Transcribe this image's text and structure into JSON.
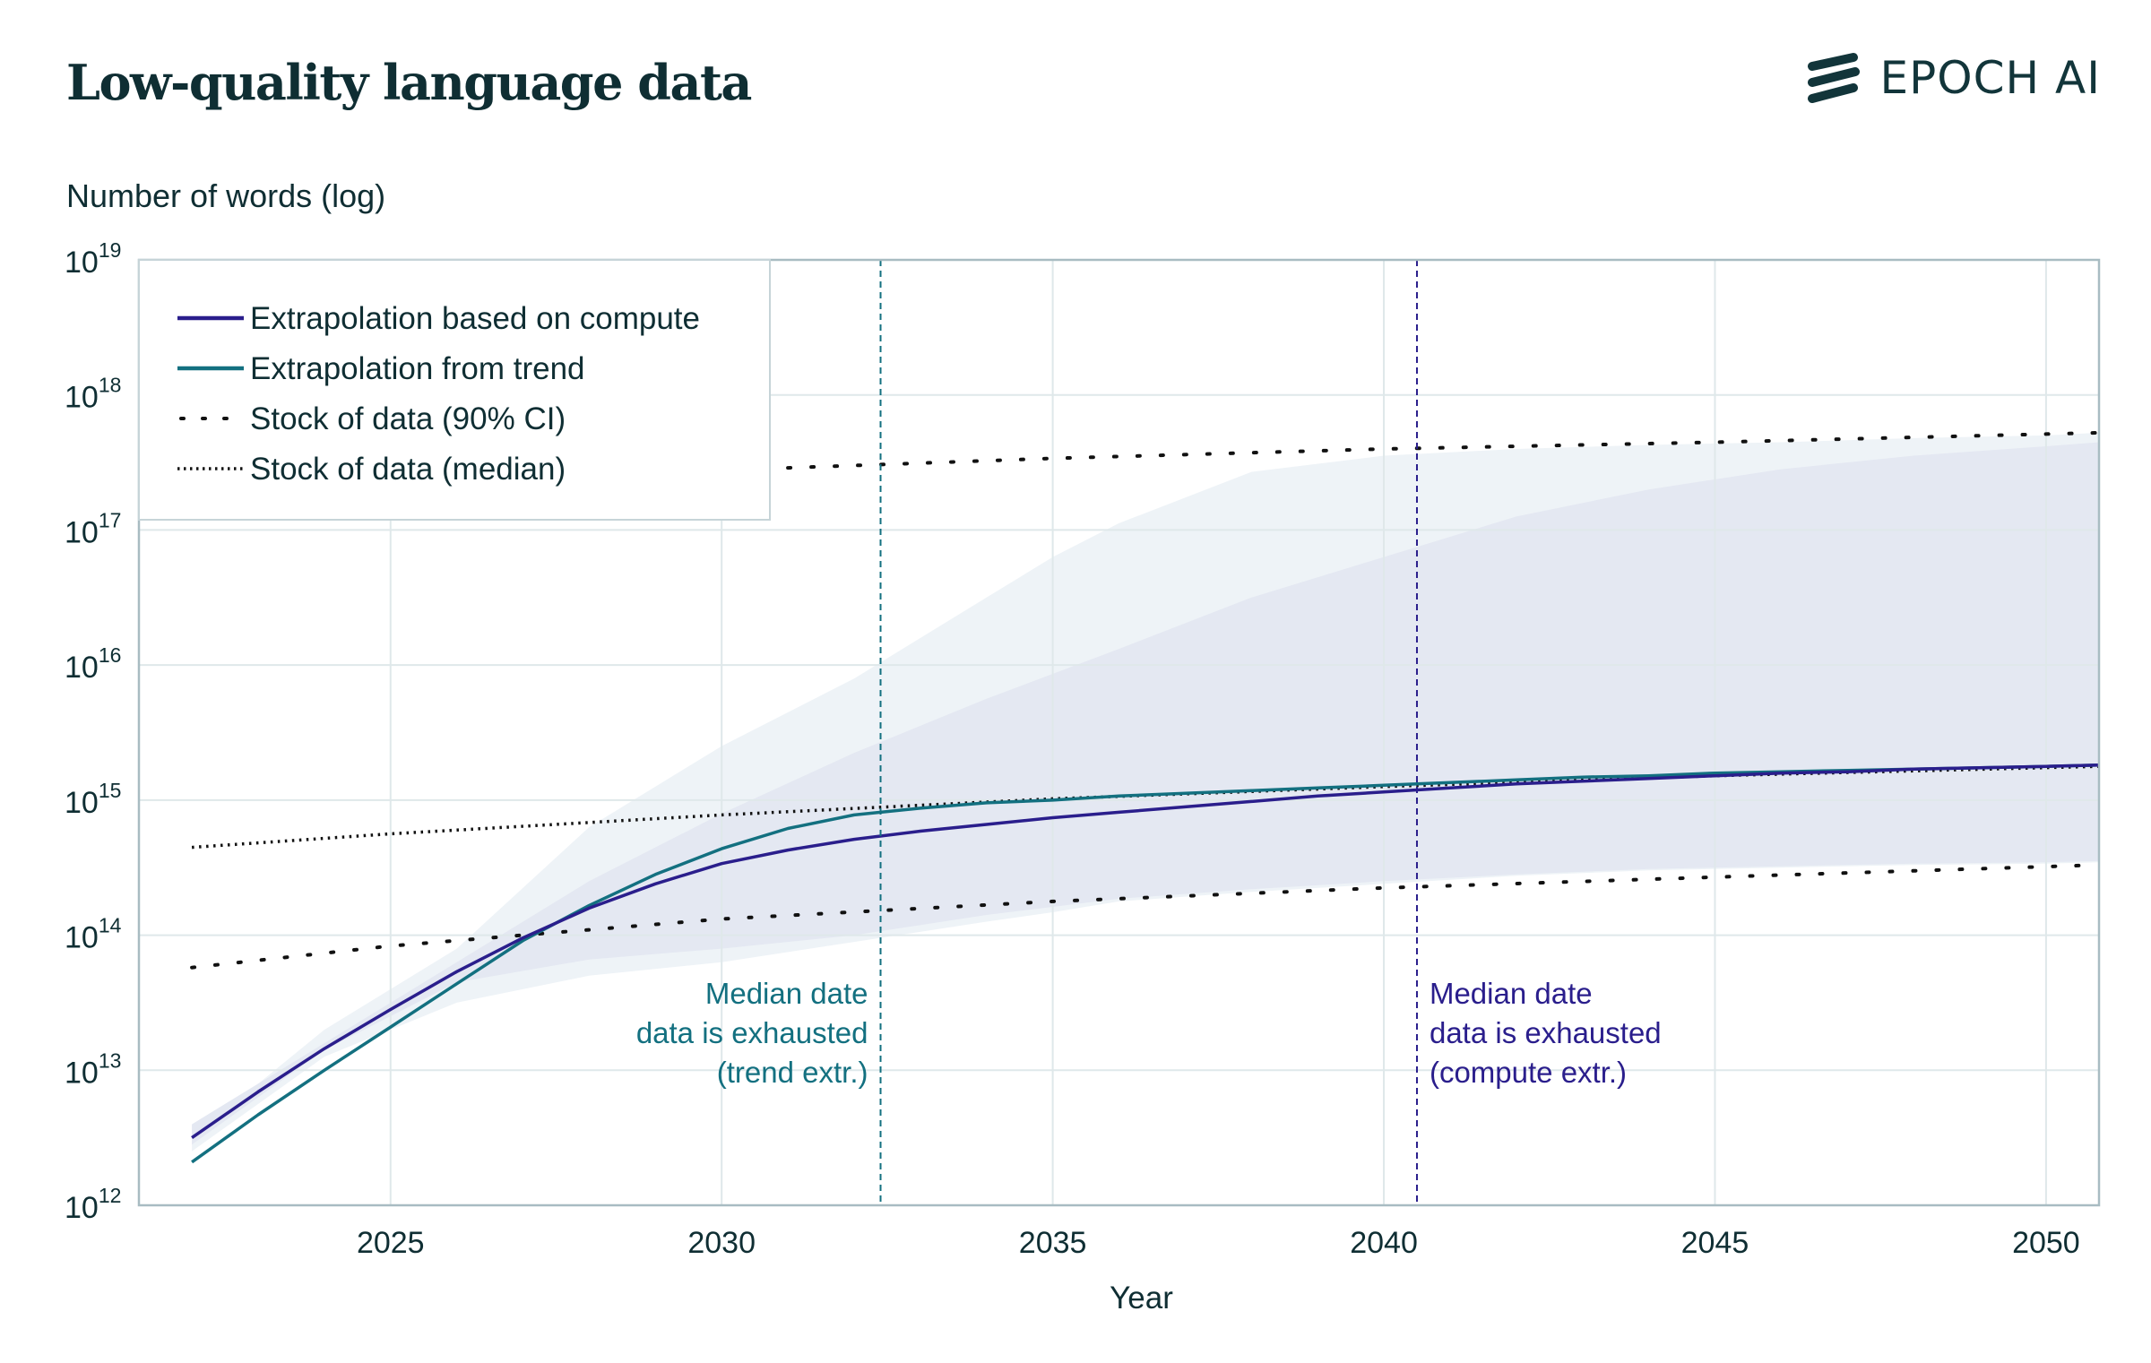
{
  "header": {
    "title": "Low-quality language data",
    "brand": "EPOCH AI"
  },
  "colors": {
    "compute": "#2a1e8c",
    "trend": "#137080",
    "band_outer": "#eef3f7",
    "band_inner": "#e4e8f2",
    "grid": "#dfe8ea",
    "text": "#0f2e33"
  },
  "chart_data": {
    "type": "line",
    "title": "Low-quality language data",
    "xlabel": "Year",
    "ylabel": "Number of words (log)",
    "y_scale": "log",
    "xlim": [
      2021.2,
      2050.8
    ],
    "ylim_exponent": [
      12,
      19
    ],
    "x_ticks": [
      2025,
      2030,
      2035,
      2040,
      2045,
      2050
    ],
    "y_ticks": [
      {
        "base": "10",
        "exp": "12",
        "e": 12
      },
      {
        "base": "10",
        "exp": "13",
        "e": 13
      },
      {
        "base": "10",
        "exp": "14",
        "e": 14
      },
      {
        "base": "10",
        "exp": "15",
        "e": 15
      },
      {
        "base": "10",
        "exp": "16",
        "e": 16
      },
      {
        "base": "10",
        "exp": "17",
        "e": 17
      },
      {
        "base": "10",
        "exp": "18",
        "e": 18
      },
      {
        "base": "10",
        "exp": "19",
        "e": 19
      }
    ],
    "grid": true,
    "legend_position": "top-left",
    "legend": [
      {
        "label": "Extrapolation based on compute",
        "style": "solid-compute"
      },
      {
        "label": "Extrapolation from trend",
        "style": "solid-trend"
      },
      {
        "label": "Stock of data (90% CI)",
        "style": "sparse-dots"
      },
      {
        "label": "Stock of data (median)",
        "style": "dense-dots"
      }
    ],
    "series": [
      {
        "name": "Extrapolation based on compute",
        "x": [
          2022,
          2023,
          2024,
          2025,
          2026,
          2027,
          2028,
          2029,
          2030,
          2031,
          2032,
          2033,
          2034,
          2035,
          2036,
          2037,
          2038,
          2039,
          2040,
          2041,
          2042,
          2043,
          2044,
          2045,
          2046,
          2047,
          2048,
          2049,
          2050,
          2050.8
        ],
        "y_exp": [
          12.5,
          12.84,
          13.16,
          13.45,
          13.73,
          13.98,
          14.2,
          14.38,
          14.53,
          14.63,
          14.71,
          14.77,
          14.82,
          14.87,
          14.91,
          14.95,
          14.99,
          15.03,
          15.06,
          15.09,
          15.12,
          15.14,
          15.16,
          15.18,
          15.2,
          15.21,
          15.23,
          15.24,
          15.25,
          15.26
        ]
      },
      {
        "name": "Extrapolation from trend",
        "x": [
          2022,
          2023,
          2024,
          2025,
          2026,
          2027,
          2028,
          2029,
          2030,
          2031,
          2032,
          2033,
          2034,
          2035,
          2036,
          2037,
          2038,
          2039,
          2040,
          2041,
          2042,
          2043,
          2044,
          2045,
          2046,
          2047,
          2048,
          2049,
          2050,
          2050.8
        ],
        "y_exp": [
          12.32,
          12.67,
          13.0,
          13.32,
          13.64,
          13.96,
          14.22,
          14.45,
          14.64,
          14.79,
          14.89,
          14.94,
          14.98,
          15.0,
          15.03,
          15.05,
          15.07,
          15.09,
          15.11,
          15.13,
          15.15,
          15.17,
          15.18,
          15.2,
          15.21,
          15.22,
          15.23,
          15.24,
          15.25,
          15.26
        ]
      },
      {
        "name": "Stock of data (median)",
        "x": [
          2022,
          2025,
          2030,
          2035,
          2040,
          2045,
          2050.8
        ],
        "y_exp": [
          14.65,
          14.75,
          14.89,
          15.01,
          15.1,
          15.18,
          15.25
        ]
      },
      {
        "name": "Stock of data (90% CI) upper",
        "x": [
          2031,
          2035,
          2040,
          2045,
          2050.8
        ],
        "y_exp": [
          17.46,
          17.53,
          17.6,
          17.65,
          17.72
        ]
      },
      {
        "name": "Stock of data (90% CI) lower",
        "x": [
          2022,
          2025,
          2030,
          2035,
          2040,
          2045,
          2050.8
        ],
        "y_exp": [
          13.76,
          13.92,
          14.12,
          14.25,
          14.35,
          14.43,
          14.52
        ]
      }
    ],
    "bands": [
      {
        "name": "outer",
        "x": [
          2022,
          2024,
          2026,
          2028,
          2030,
          2032,
          2034,
          2035,
          2036,
          2038,
          2040,
          2042,
          2044,
          2046,
          2048,
          2050,
          2050.8
        ],
        "upper_exp": [
          12.5,
          13.3,
          13.9,
          14.8,
          15.4,
          15.9,
          16.5,
          16.8,
          17.05,
          17.43,
          17.55,
          17.6,
          17.63,
          17.65,
          17.68,
          17.7,
          17.72
        ],
        "lower_exp": [
          12.4,
          13.1,
          13.5,
          13.7,
          13.8,
          13.95,
          14.1,
          14.17,
          14.25,
          14.32,
          14.38,
          14.44,
          14.48,
          14.5,
          14.52,
          14.53,
          14.54
        ]
      },
      {
        "name": "inner",
        "x": [
          2022,
          2024,
          2026,
          2028,
          2030,
          2032,
          2034,
          2036,
          2038,
          2040,
          2042,
          2044,
          2046,
          2048,
          2050,
          2050.8
        ],
        "upper_exp": [
          12.6,
          13.2,
          13.8,
          14.4,
          14.9,
          15.35,
          15.75,
          16.12,
          16.5,
          16.8,
          17.1,
          17.3,
          17.45,
          17.55,
          17.62,
          17.65
        ],
        "lower_exp": [
          12.45,
          13.15,
          13.65,
          13.82,
          13.9,
          14.0,
          14.15,
          14.27,
          14.34,
          14.4,
          14.45,
          14.49,
          14.51,
          14.53,
          14.54,
          14.55
        ]
      }
    ],
    "annotations": [
      {
        "x": 2032.4,
        "lines": [
          "Median date",
          "data is exhausted",
          "(trend extr.)"
        ],
        "align": "right",
        "color_key": "trend"
      },
      {
        "x": 2040.5,
        "lines": [
          "Median date",
          "data is exhausted",
          "(compute extr.)"
        ],
        "align": "left",
        "color_key": "compute"
      }
    ]
  }
}
